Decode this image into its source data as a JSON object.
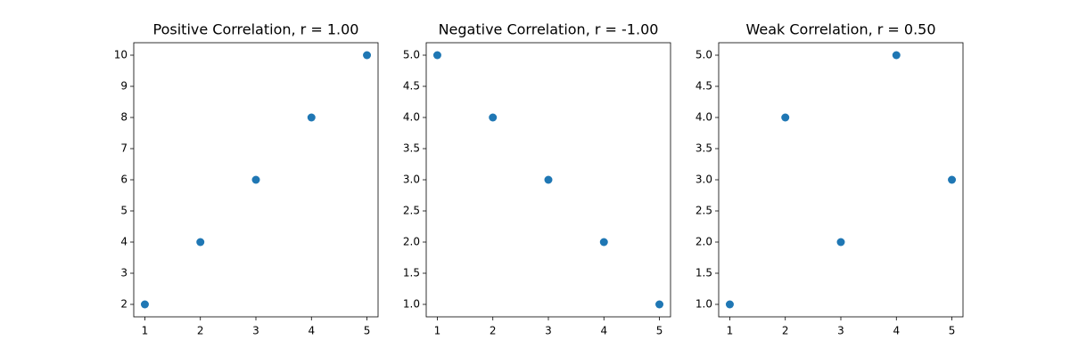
{
  "chart_data": [
    {
      "type": "scatter",
      "title": "Positive Correlation, r = 1.00",
      "x": [
        1,
        2,
        3,
        4,
        5
      ],
      "values": [
        2,
        4,
        6,
        8,
        10
      ],
      "color": "#1f77b4",
      "xlim": [
        0.8,
        5.2
      ],
      "ylim": [
        1.6,
        10.4
      ],
      "xticks": [
        1,
        2,
        3,
        4,
        5
      ],
      "yticks": [
        2,
        3,
        4,
        5,
        6,
        7,
        8,
        9,
        10
      ]
    },
    {
      "type": "scatter",
      "title": "Negative Correlation, r = -1.00",
      "x": [
        1,
        2,
        3,
        4,
        5
      ],
      "values": [
        5,
        4,
        3,
        2,
        1
      ],
      "color": "#1f77b4",
      "xlim": [
        0.8,
        5.2
      ],
      "ylim": [
        0.8,
        5.2
      ],
      "xticks": [
        1,
        2,
        3,
        4,
        5
      ],
      "yticks": [
        {
          "value": 1,
          "label": "1.0"
        },
        {
          "value": 1.5,
          "label": "1.5"
        },
        {
          "value": 2,
          "label": "2.0"
        },
        {
          "value": 2.5,
          "label": "2.5"
        },
        {
          "value": 3,
          "label": "3.0"
        },
        {
          "value": 3.5,
          "label": "3.5"
        },
        {
          "value": 4,
          "label": "4.0"
        },
        {
          "value": 4.5,
          "label": "4.5"
        },
        {
          "value": 5,
          "label": "5.0"
        }
      ]
    },
    {
      "type": "scatter",
      "title": "Weak Correlation, r = 0.50",
      "x": [
        1,
        2,
        3,
        4,
        5
      ],
      "values": [
        1,
        4,
        2,
        5,
        3
      ],
      "color": "#1f77b4",
      "xlim": [
        0.8,
        5.2
      ],
      "ylim": [
        0.8,
        5.2
      ],
      "xticks": [
        1,
        2,
        3,
        4,
        5
      ],
      "yticks": [
        {
          "value": 1,
          "label": "1.0"
        },
        {
          "value": 1.5,
          "label": "1.5"
        },
        {
          "value": 2,
          "label": "2.0"
        },
        {
          "value": 2.5,
          "label": "2.5"
        },
        {
          "value": 3,
          "label": "3.0"
        },
        {
          "value": 3.5,
          "label": "3.5"
        },
        {
          "value": 4,
          "label": "4.0"
        },
        {
          "value": 4.5,
          "label": "4.5"
        },
        {
          "value": 5,
          "label": "5.0"
        }
      ]
    }
  ]
}
